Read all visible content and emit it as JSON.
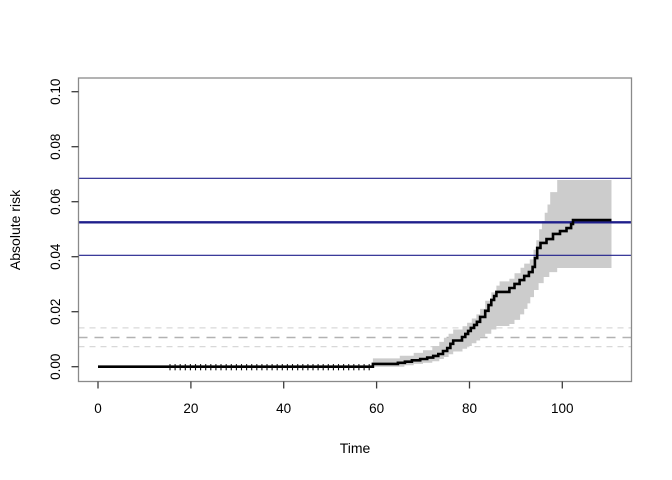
{
  "figure": {
    "background": "#ffffff",
    "text_color": "#000000"
  },
  "chart_data": {
    "type": "line",
    "subtype": "step-function-with-confidence-band",
    "title": "",
    "xlabel": "Time",
    "ylabel": "Absolute risk",
    "xlim": [
      -4.2,
      114.9
    ],
    "ylim": [
      -0.0054,
      0.105
    ],
    "x_ticks": [
      0,
      20,
      40,
      60,
      80,
      100
    ],
    "x_tick_labels": [
      "0",
      "20",
      "40",
      "60",
      "80",
      "100"
    ],
    "y_ticks": [
      0.0,
      0.02,
      0.04,
      0.06,
      0.08,
      0.1
    ],
    "y_tick_labels": [
      "0.00",
      "0.02",
      "0.04",
      "0.06",
      "0.08",
      "0.10"
    ],
    "grid": false,
    "legend_position": "none",
    "axis_color": "#8a8a8a",
    "tick_color": "#3c3c3c",
    "series": [
      {
        "name": "absolute-risk-estimate",
        "type": "step",
        "color": "#000000",
        "linewidth": 2.6,
        "end_time": 110.6,
        "points": [
          [
            0,
            0.0
          ],
          [
            59.2,
            0.001
          ],
          [
            64.6,
            0.0014
          ],
          [
            66.1,
            0.0018
          ],
          [
            67.6,
            0.0023
          ],
          [
            69.4,
            0.0028
          ],
          [
            70.9,
            0.0033
          ],
          [
            72.2,
            0.0039
          ],
          [
            73.3,
            0.0046
          ],
          [
            74.3,
            0.0057
          ],
          [
            75.2,
            0.0068
          ],
          [
            75.9,
            0.0083
          ],
          [
            76.5,
            0.0095
          ],
          [
            78.4,
            0.0108
          ],
          [
            79.1,
            0.0119
          ],
          [
            79.7,
            0.013
          ],
          [
            80.3,
            0.0141
          ],
          [
            81.0,
            0.0152
          ],
          [
            81.6,
            0.0163
          ],
          [
            82.3,
            0.0181
          ],
          [
            83.4,
            0.0203
          ],
          [
            84.1,
            0.0224
          ],
          [
            84.7,
            0.0243
          ],
          [
            85.3,
            0.0257
          ],
          [
            85.8,
            0.0272
          ],
          [
            88.6,
            0.0286
          ],
          [
            89.7,
            0.0301
          ],
          [
            90.8,
            0.0315
          ],
          [
            91.8,
            0.033
          ],
          [
            92.8,
            0.0344
          ],
          [
            93.6,
            0.0363
          ],
          [
            94.1,
            0.0395
          ],
          [
            94.6,
            0.0432
          ],
          [
            95.3,
            0.045
          ],
          [
            96.6,
            0.0464
          ],
          [
            98.0,
            0.0483
          ],
          [
            99.5,
            0.0493
          ],
          [
            100.9,
            0.0504
          ],
          [
            101.9,
            0.0519
          ],
          [
            102.3,
            0.0533
          ]
        ]
      },
      {
        "name": "confidence-band",
        "type": "step-band",
        "fill": "#cccccc",
        "end_time": 110.6,
        "upper": [
          [
            59.2,
            0.003
          ],
          [
            65,
            0.004
          ],
          [
            68,
            0.005
          ],
          [
            70,
            0.006
          ],
          [
            72,
            0.0075
          ],
          [
            73.5,
            0.009
          ],
          [
            74.5,
            0.0105
          ],
          [
            75.5,
            0.012
          ],
          [
            76.5,
            0.0135
          ],
          [
            78.5,
            0.0147
          ],
          [
            79.5,
            0.016
          ],
          [
            80.5,
            0.0175
          ],
          [
            81.5,
            0.019
          ],
          [
            82.3,
            0.021
          ],
          [
            83.4,
            0.024
          ],
          [
            84.7,
            0.027
          ],
          [
            85.8,
            0.0295
          ],
          [
            86.5,
            0.031
          ],
          [
            88.6,
            0.032
          ],
          [
            89.7,
            0.034
          ],
          [
            91.0,
            0.036
          ],
          [
            91.8,
            0.0375
          ],
          [
            93.0,
            0.039
          ],
          [
            93.8,
            0.0425
          ],
          [
            94.4,
            0.046
          ],
          [
            95.0,
            0.05
          ],
          [
            95.6,
            0.053
          ],
          [
            96.2,
            0.056
          ],
          [
            96.8,
            0.059
          ],
          [
            97.4,
            0.0635
          ],
          [
            98.9,
            0.0679
          ]
        ],
        "lower": [
          [
            59.2,
            0.0
          ],
          [
            66,
            0.0005
          ],
          [
            68,
            0.001
          ],
          [
            70,
            0.0014
          ],
          [
            72,
            0.002
          ],
          [
            73.5,
            0.0028
          ],
          [
            74.5,
            0.0035
          ],
          [
            75.5,
            0.0045
          ],
          [
            76.5,
            0.0055
          ],
          [
            78.5,
            0.0065
          ],
          [
            79.5,
            0.0075
          ],
          [
            80.5,
            0.0085
          ],
          [
            81.5,
            0.0095
          ],
          [
            82.3,
            0.0107
          ],
          [
            83.4,
            0.012
          ],
          [
            84.7,
            0.0135
          ],
          [
            85.8,
            0.0148
          ],
          [
            88.6,
            0.0155
          ],
          [
            89.7,
            0.017
          ],
          [
            90.9,
            0.019
          ],
          [
            91.8,
            0.021
          ],
          [
            92.5,
            0.023
          ],
          [
            93.1,
            0.0253
          ],
          [
            93.9,
            0.0279
          ],
          [
            94.9,
            0.0304
          ],
          [
            96.0,
            0.0326
          ],
          [
            97.2,
            0.0344
          ],
          [
            98.9,
            0.0359
          ]
        ]
      }
    ],
    "reference_lines_solid": {
      "color": "#1f1f8b",
      "lines": [
        {
          "y": 0.0685,
          "width": 1.2
        },
        {
          "y": 0.0525,
          "width": 2.4
        },
        {
          "y": 0.0405,
          "width": 1.2
        }
      ]
    },
    "reference_lines_dashed": [
      {
        "y": 0.0141,
        "color": "#d8d8d8",
        "width": 1.3,
        "dash": "6,5"
      },
      {
        "y": 0.0106,
        "color": "#b2b2b2",
        "width": 1.5,
        "dash": "9,7"
      },
      {
        "y": 0.0073,
        "color": "#d8d8d8",
        "width": 1.3,
        "dash": "6,5"
      }
    ],
    "censoring_marks": {
      "color": "#0a0a0a",
      "times": [
        15.5,
        16.6,
        17.7,
        18.8,
        19.9,
        21.0,
        22.1,
        23.2,
        24.3,
        25.4,
        26.5,
        27.6,
        28.7,
        29.8,
        30.9,
        32.0,
        33.1,
        34.2,
        35.3,
        36.4,
        37.5,
        38.6,
        39.7,
        40.8,
        41.9,
        43.0,
        44.1,
        45.2,
        46.3,
        47.4,
        48.5,
        49.6,
        50.7,
        51.8,
        52.9,
        54.0,
        55.1,
        56.2,
        57.3,
        58.4
      ]
    }
  }
}
